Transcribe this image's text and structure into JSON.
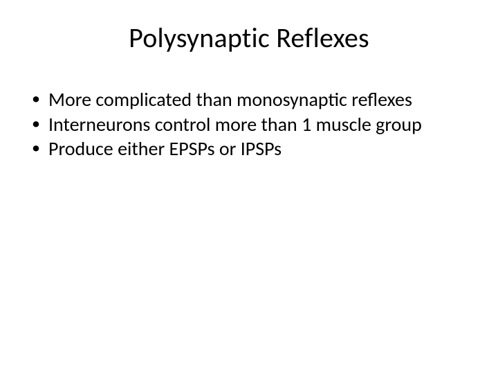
{
  "slide": {
    "background_color": "#ffffff",
    "text_color": "#000000",
    "font_family": "Calibri",
    "title": {
      "text": "Polysynaptic Reflexes",
      "fontsize": 40,
      "align": "center",
      "weight": "normal"
    },
    "bullets": {
      "fontsize": 28,
      "marker": "•",
      "items": [
        "More complicated than monosynaptic reflexes",
        "Interneurons control more than 1 muscle group",
        "Produce either EPSPs or IPSPs"
      ]
    }
  }
}
